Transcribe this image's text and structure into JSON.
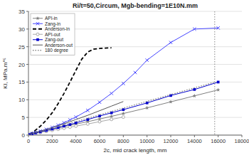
{
  "chart_data": {
    "type": "line",
    "title": "Ri/t=50,Circum, Mgb-bending=1E10N.mm",
    "x_label": "2c, mid crack length, mm",
    "y_label": "KI, MPa.m°⁵",
    "xlim": [
      0,
      18000
    ],
    "ylim": [
      0,
      35
    ],
    "xticks": [
      0,
      2000,
      4000,
      6000,
      8000,
      10000,
      12000,
      14000,
      16000,
      18000
    ],
    "yticks": [
      0,
      5,
      10,
      15,
      20,
      25,
      30,
      35
    ],
    "grid": true,
    "legend": "upper left",
    "vline": 15708,
    "series": [
      {
        "name": "API-in",
        "color": "#808080",
        "marker": "star",
        "line_style": "solid",
        "x": [
          100,
          300,
          600,
          1000,
          1500,
          2000,
          2500,
          3000,
          3500,
          4000,
          5000,
          6000,
          7000,
          8000,
          10000,
          12000,
          14000,
          16000
        ],
        "values": [
          0.2,
          0.4,
          0.65,
          0.95,
          1.35,
          1.7,
          2.05,
          2.4,
          2.75,
          3.1,
          3.8,
          4.55,
          5.3,
          6.1,
          7.7,
          9.4,
          11.1,
          12.8
        ]
      },
      {
        "name": "Zang-in",
        "color": "#4444ff",
        "marker": "x",
        "line_style": "solid",
        "x": [
          100,
          300,
          600,
          1000,
          1500,
          2000,
          2500,
          3000,
          3500,
          4000,
          5000,
          6000,
          7000,
          8000,
          9000,
          10000,
          12000,
          14000,
          16000
        ],
        "values": [
          0.2,
          0.45,
          0.75,
          1.15,
          1.65,
          2.2,
          2.8,
          3.5,
          4.3,
          5.1,
          7.0,
          9.3,
          11.8,
          14.6,
          17.7,
          21.2,
          26.2,
          30.0,
          30.3
        ]
      },
      {
        "name": "Anderson-in",
        "color": "#000000",
        "marker": "none",
        "line_style": "dashed",
        "x": [
          100,
          300,
          600,
          1000,
          1500,
          2000,
          2500,
          3000,
          3500,
          4000,
          4500,
          5000,
          5500,
          6000,
          6500,
          7000
        ],
        "values": [
          0.3,
          0.7,
          1.4,
          2.5,
          4.2,
          6.3,
          8.9,
          11.8,
          15.0,
          18.3,
          21.5,
          23.5,
          24.3,
          24.5,
          24.6,
          24.7
        ]
      },
      {
        "name": "API-out",
        "color": "#aaaaaa",
        "marker": "circle",
        "line_style": "solid",
        "x": [
          100,
          300,
          600,
          1000,
          1500,
          2000,
          2500,
          3000,
          3500,
          4000,
          5000,
          6000,
          7000,
          8000
        ],
        "values": [
          0.15,
          0.3,
          0.5,
          0.75,
          1.05,
          1.35,
          1.65,
          1.95,
          2.25,
          2.55,
          3.15,
          3.8,
          4.45,
          5.1
        ]
      },
      {
        "name": "Zang-out",
        "color": "#0000cc",
        "marker": "square",
        "line_style": "solid",
        "x": [
          100,
          300,
          600,
          1000,
          1500,
          2000,
          2500,
          3000,
          3500,
          4000,
          5000,
          6000,
          7000,
          8000,
          10000,
          12000,
          14000,
          16000
        ],
        "values": [
          0.15,
          0.35,
          0.6,
          0.9,
          1.3,
          1.7,
          2.1,
          2.55,
          3.0,
          3.45,
          4.4,
          5.4,
          6.3,
          7.2,
          9.1,
          11.2,
          12.9,
          15.0
        ]
      },
      {
        "name": "Anderson-out",
        "color": "#555555",
        "marker": "none",
        "line_style": "solid",
        "x": [
          100,
          300,
          600,
          1000,
          1500,
          2000,
          2500,
          3000,
          3500,
          4000,
          5000,
          6000,
          7000,
          8000
        ],
        "values": [
          0.2,
          0.4,
          0.75,
          1.1,
          1.6,
          2.1,
          2.65,
          3.2,
          3.8,
          4.4,
          5.6,
          6.9,
          8.2,
          9.5
        ]
      },
      {
        "name": "180 degree",
        "color": "#888888",
        "marker": "none",
        "line_style": "dotted",
        "x": [
          0,
          15708
        ],
        "values": [
          0,
          15.0
        ]
      }
    ]
  }
}
